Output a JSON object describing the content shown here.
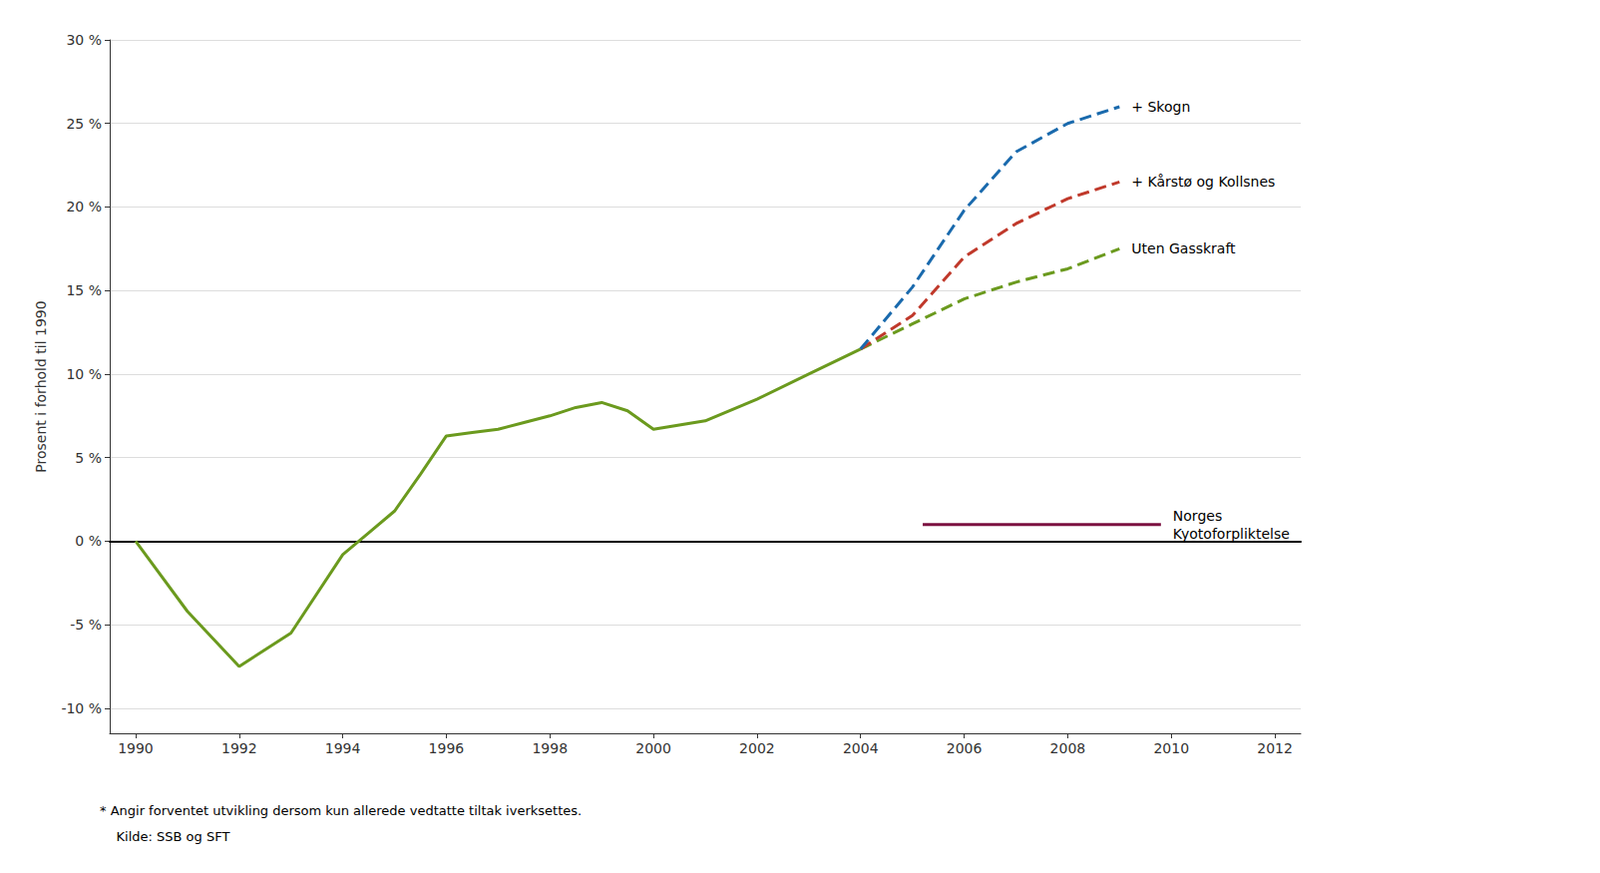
{
  "chart_data": {
    "type": "line",
    "ylabel": "Prosent i forhold til 1990",
    "xlim": [
      1989.5,
      2012.5
    ],
    "ylim": [
      -11.5,
      30
    ],
    "xticks": [
      1990,
      1992,
      1994,
      1996,
      1998,
      2000,
      2002,
      2004,
      2006,
      2008,
      2010,
      2012
    ],
    "yticks": [
      {
        "value": -10,
        "label": "-10 %"
      },
      {
        "value": -5,
        "label": "-5 %"
      },
      {
        "value": 0,
        "label": "0 %"
      },
      {
        "value": 5,
        "label": "5 %"
      },
      {
        "value": 10,
        "label": "10 %"
      },
      {
        "value": 15,
        "label": "15 %"
      },
      {
        "value": 20,
        "label": "20 %"
      },
      {
        "value": 25,
        "label": "25 %"
      },
      {
        "value": 30,
        "label": "30 %"
      }
    ],
    "grid": "y",
    "series": [
      {
        "x": [
          1990,
          1991,
          1992,
          1993,
          1994,
          1994.5,
          1995,
          1995.5,
          1996,
          1996.5,
          1997,
          1997.5,
          1998,
          1998.5,
          1999,
          1999.5,
          2000,
          2001,
          2002,
          2003,
          2004
        ],
        "values": [
          0.0,
          -4.2,
          -7.5,
          -5.5,
          -0.8,
          0.5,
          1.8,
          4.0,
          6.3,
          6.5,
          6.7,
          7.1,
          7.5,
          8.0,
          8.3,
          7.8,
          6.7,
          7.2,
          8.5,
          10.0,
          11.5
        ],
        "color": "#6b9a1e",
        "line_style": "solid"
      },
      {
        "name": "Uten Gasskraft",
        "x": [
          2004,
          2005,
          2006,
          2007,
          2008,
          2009
        ],
        "values": [
          11.5,
          13.0,
          14.5,
          15.5,
          16.3,
          17.5
        ],
        "color": "#6b9a1e",
        "line_style": "dashed"
      },
      {
        "name": "+ Kårstø og Kollsnes",
        "x": [
          2004,
          2005,
          2006,
          2007,
          2008,
          2009
        ],
        "values": [
          11.5,
          13.5,
          17.0,
          19.0,
          20.5,
          21.5
        ],
        "color": "#c0392b",
        "line_style": "dashed"
      },
      {
        "name": "+ Skogn",
        "x": [
          2004,
          2005,
          2006,
          2007,
          2008,
          2009
        ],
        "values": [
          11.5,
          15.2,
          19.8,
          23.3,
          25.0,
          26.0
        ],
        "color": "#1a6aad",
        "line_style": "dashed"
      },
      {
        "name": "Norges\nKyotoforpliktelse",
        "x": [
          2005.2,
          2009.8
        ],
        "values": [
          1.0,
          1.0
        ],
        "color": "#7b1040",
        "line_style": "solid"
      }
    ],
    "annotations": [
      "* Angir forventet utvikling dersom kun allerede vedtatte tiltak iverksettes.",
      "    Kilde: SSB og SFT"
    ]
  }
}
